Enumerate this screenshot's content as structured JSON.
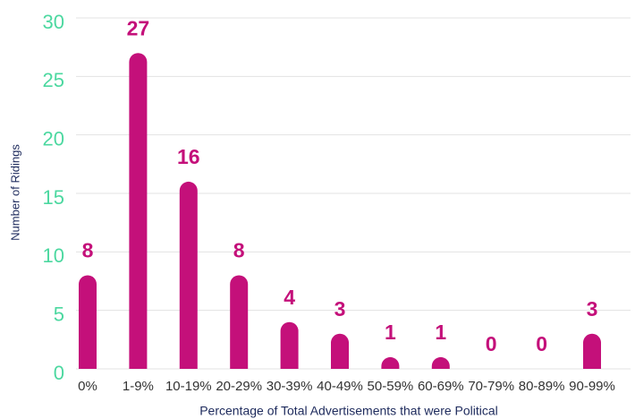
{
  "chart_data": {
    "type": "bar",
    "categories": [
      "0%",
      "1-9%",
      "10-19%",
      "20-29%",
      "30-39%",
      "40-49%",
      "50-59%",
      "60-69%",
      "70-79%",
      "80-89%",
      "90-99%"
    ],
    "values": [
      8,
      27,
      16,
      8,
      4,
      3,
      1,
      1,
      0,
      0,
      3
    ],
    "color": "#c4107a",
    "x_label": "Percentage of Total Advertisements that were Political",
    "y_label": "Number of Ridings",
    "ylim": [
      0,
      30
    ],
    "yticks": [
      0,
      5,
      10,
      15,
      20,
      25,
      30
    ],
    "grid": true
  }
}
